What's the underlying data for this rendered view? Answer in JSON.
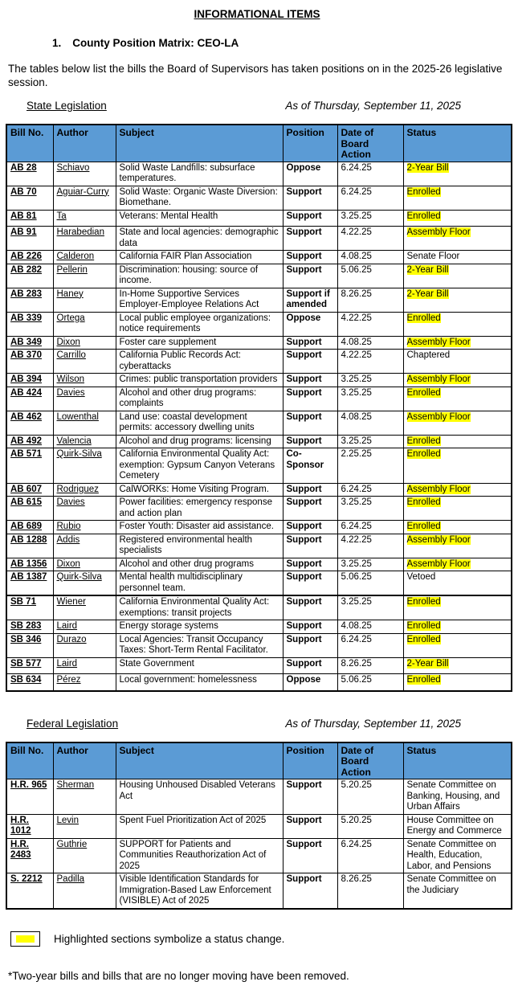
{
  "page": {
    "title": "INFORMATIONAL ITEMS",
    "item_number": "1.",
    "item_title": "County Position Matrix:  CEO-LA",
    "intro": "The tables below list the bills the Board of Supervisors has taken positions on in the 2025-26 legislative session.",
    "legend_text": "Highlighted sections symbolize a status change.",
    "footnote": "*Two-year bills and bills that are no longer moving have been removed."
  },
  "colors": {
    "header_blue": "#5B9BD5",
    "highlight_yellow": "#FFFF00"
  },
  "columns": [
    "Bill No.",
    "Author",
    "Subject",
    "Position",
    "Date of Board Action",
    "Status"
  ],
  "state_table": {
    "section_label": "State Legislation",
    "as_of": "As of Thursday, September 11, 2025",
    "rows": [
      {
        "bill": "AB 28",
        "author": "Schiavo",
        "subject": "Solid Waste Landfills: subsurface temperatures.",
        "position": "Oppose",
        "date": "6.24.25",
        "status": "2-Year Bill",
        "highlight": true
      },
      {
        "bill": "AB 70",
        "author": "Aguiar-Curry",
        "subject": "Solid Waste: Organic Waste Diversion: Biomethane.",
        "position": "Support",
        "date": "6.24.25",
        "status": "Enrolled",
        "highlight": true
      },
      {
        "bill": "AB 81",
        "author": "Ta",
        "subject": "Veterans: Mental Health",
        "position": "Support",
        "date": "3.25.25",
        "status": "Enrolled",
        "highlight": true,
        "pad": true
      },
      {
        "bill": "AB 91",
        "author": "Harabedian",
        "subject": "State and local agencies: demographic data",
        "position": "Support",
        "date": "4.22.25",
        "status": "Assembly Floor",
        "highlight": true
      },
      {
        "bill": "AB 226",
        "author": "Calderon",
        "subject": "California FAIR Plan Association",
        "position": "Support",
        "date": "4.08.25",
        "status": "Senate Floor",
        "highlight": false
      },
      {
        "bill": "AB 282",
        "author": "Pellerin",
        "subject": "Discrimination: housing: source of income.",
        "position": "Support",
        "date": "5.06.25",
        "status": "2-Year Bill",
        "highlight": true
      },
      {
        "bill": "AB 283",
        "author": "Haney",
        "subject": "In-Home Supportive Services Employer-Employee Relations Act",
        "position": "Support if amended",
        "date": "8.26.25",
        "status": "2-Year Bill",
        "highlight": true
      },
      {
        "bill": "AB 339",
        "author": "Ortega",
        "subject": "Local public employee organizations: notice requirements",
        "position": "Oppose",
        "date": "4.22.25",
        "status": "Enrolled",
        "highlight": true
      },
      {
        "bill": "AB 349",
        "author": "Dixon",
        "subject": "Foster care supplement",
        "position": "Support",
        "date": "4.08.25",
        "status": "Assembly Floor",
        "highlight": true
      },
      {
        "bill": "AB 370",
        "author": "Carrillo",
        "subject": "California Public Records Act: cyberattacks",
        "position": "Support",
        "date": "4.22.25",
        "status": "Chaptered",
        "highlight": false
      },
      {
        "bill": "AB 394",
        "author": "Wilson",
        "subject": "Crimes: public transportation providers",
        "position": "Support",
        "date": "3.25.25",
        "status": "Assembly Floor",
        "highlight": true
      },
      {
        "bill": "AB 424",
        "author": "Davies",
        "subject": "Alcohol and other drug programs: complaints",
        "position": "Support",
        "date": "3.25.25",
        "status": "Enrolled",
        "highlight": true
      },
      {
        "bill": "AB 462",
        "author": "Lowenthal",
        "subject": "Land use: coastal development permits: accessory dwelling units",
        "position": "Support",
        "date": "4.08.25",
        "status": "Assembly Floor",
        "highlight": true
      },
      {
        "bill": "AB 492",
        "author": "Valencia",
        "subject": "Alcohol and drug programs: licensing",
        "position": "Support",
        "date": "3.25.25",
        "status": "Enrolled",
        "highlight": true
      },
      {
        "bill": "AB 571",
        "author": "Quirk-Silva",
        "subject": "California Environmental Quality Act: exemption: Gypsum Canyon Veterans Cemetery",
        "position": "Co-Sponsor",
        "date": "2.25.25",
        "status": "Enrolled",
        "highlight": true
      },
      {
        "bill": "AB 607",
        "author": "Rodriguez",
        "subject": "CalWORKs: Home Visiting Program.",
        "position": "Support",
        "date": "6.24.25",
        "status": "Assembly Floor",
        "highlight": true
      },
      {
        "bill": "AB 615",
        "author": "Davies",
        "subject": "Power facilities: emergency response and action plan",
        "position": "Support",
        "date": "3.25.25",
        "status": "Enrolled",
        "highlight": true
      },
      {
        "bill": "AB 689",
        "author": "Rubio",
        "subject": "Foster Youth: Disaster aid assistance.",
        "position": "Support",
        "date": "6.24.25",
        "status": "Enrolled",
        "highlight": true
      },
      {
        "bill": "AB 1288",
        "author": "Addis",
        "subject": "Registered environmental health specialists",
        "position": "Support",
        "date": "4.22.25",
        "status": "Assembly Floor",
        "highlight": true
      },
      {
        "bill": "AB 1356",
        "author": "Dixon",
        "subject": "Alcohol and other drug programs",
        "position": "Support",
        "date": "3.25.25",
        "status": "Assembly Floor",
        "highlight": true
      },
      {
        "bill": "AB 1387",
        "author": "Quirk-Silva",
        "subject": "Mental health multidisciplinary personnel team.",
        "position": "Support",
        "date": "5.06.25",
        "status": "Vetoed",
        "highlight": false
      },
      {
        "bill": "SB 71",
        "author": "Wiener",
        "subject": "California Environmental Quality Act: exemptions: transit projects",
        "position": "Support",
        "date": "3.25.25",
        "status": "Enrolled",
        "highlight": true,
        "section_break": true
      },
      {
        "bill": "SB 283",
        "author": "Laird",
        "subject": "Energy storage systems",
        "position": "Support",
        "date": "4.08.25",
        "status": "Enrolled",
        "highlight": true
      },
      {
        "bill": "SB 346",
        "author": "Durazo",
        "subject": "Local Agencies: Transit Occupancy Taxes: Short-Term Rental Facilitator.",
        "position": "Support",
        "date": "6.24.25",
        "status": "Enrolled",
        "highlight": true
      },
      {
        "bill": "SB 577",
        "author": "Laird",
        "subject": "State Government",
        "position": "Support",
        "date": "8.26.25",
        "status": "2-Year Bill",
        "highlight": true,
        "pad": true
      },
      {
        "bill": "SB 634",
        "author": "Pérez",
        "subject": "Local government: homelessness",
        "position": "Oppose",
        "date": "5.06.25",
        "status": "Enrolled",
        "highlight": true,
        "pad": true
      }
    ]
  },
  "federal_table": {
    "section_label": "Federal Legislation",
    "as_of": "As of Thursday, September 11, 2025",
    "rows": [
      {
        "bill": "H.R. 965",
        "author": "Sherman",
        "subject": "Housing Unhoused Disabled Veterans Act",
        "position": "Support",
        "date": "5.20.25",
        "status": "Senate Committee on Banking, Housing, and Urban Affairs",
        "highlight": false
      },
      {
        "bill": "H.R. 1012",
        "author": "Levin",
        "subject": "Spent Fuel Prioritization Act of 2025",
        "position": "Support",
        "date": "5.20.25",
        "status": "House Committee on Energy and Commerce",
        "highlight": false
      },
      {
        "bill": "H.R. 2483",
        "author": "Guthrie",
        "subject": "SUPPORT for Patients and Communities Reauthorization Act of 2025",
        "position": "Support",
        "date": "6.24.25",
        "status": "Senate Committee on Health, Education, Labor, and Pensions",
        "highlight": false
      },
      {
        "bill": "S. 2212",
        "author": "Padilla",
        "subject": "Visible Identification Standards for Immigration-Based Law Enforcement (VISIBLE) Act of 2025",
        "position": "Support",
        "date": "8.26.25",
        "status": "Senate Committee on the Judiciary",
        "highlight": false
      }
    ]
  }
}
